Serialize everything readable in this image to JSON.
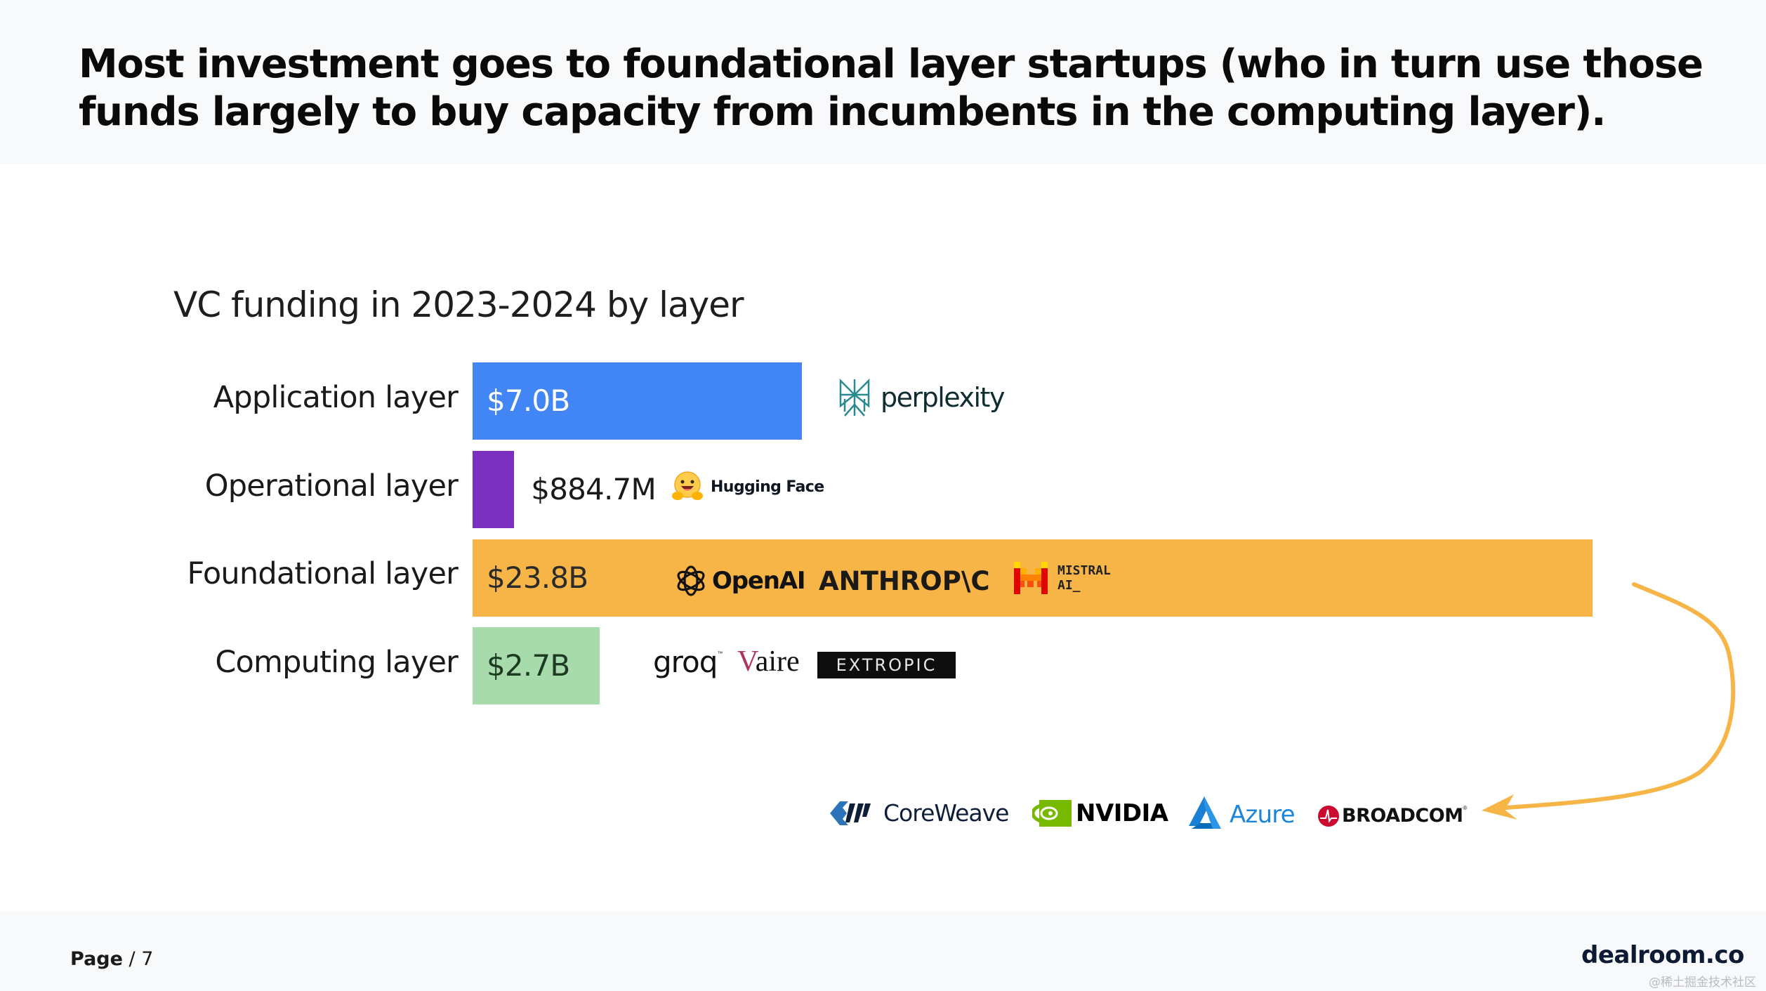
{
  "slide": {
    "headline": "Most investment goes to foundational layer startups (who in turn use those funds largely to buy capacity from incumbents in the computing layer).",
    "footer": {
      "page_label": "Page",
      "page_sep": " / ",
      "page_number": "7",
      "brand": "dealroom.co",
      "watermark": "@稀土掘金技术社区"
    }
  },
  "chart_data": {
    "type": "bar",
    "orientation": "horizontal",
    "title": "VC funding in 2023-2024 by layer",
    "xlabel": "",
    "ylabel": "",
    "unit": "USD billions",
    "grid": false,
    "xlim": [
      0,
      23.8
    ],
    "categories": [
      "Application layer",
      "Operational layer",
      "Foundational layer",
      "Computing layer"
    ],
    "values": [
      7.0,
      0.8847,
      23.8,
      2.7
    ],
    "data_labels": [
      "$7.0B",
      "$884.7M",
      "$23.8B",
      "$2.7B"
    ],
    "colors": [
      "#4285f4",
      "#7b2fbe",
      "#f7b547",
      "#a8dbab"
    ],
    "label_colors": [
      "#ffffff",
      "#1a1a1a",
      "#2b2b2b",
      "#1f3a22"
    ],
    "label_inside": [
      true,
      false,
      true,
      true
    ],
    "company_logos": [
      [
        "perplexity"
      ],
      [
        "Hugging Face"
      ],
      [
        "OpenAI",
        "ANTHROP\\C",
        "MISTRAL AI_"
      ],
      [
        "groq",
        "Vaire",
        "EXTROPIC"
      ]
    ],
    "annotation": {
      "type": "arrow",
      "from": "Foundational layer",
      "to": "incumbents",
      "color": "#f7b547",
      "incumbents": [
        "CoreWeave",
        "NVIDIA",
        "Azure",
        "BROADCOM"
      ]
    }
  }
}
